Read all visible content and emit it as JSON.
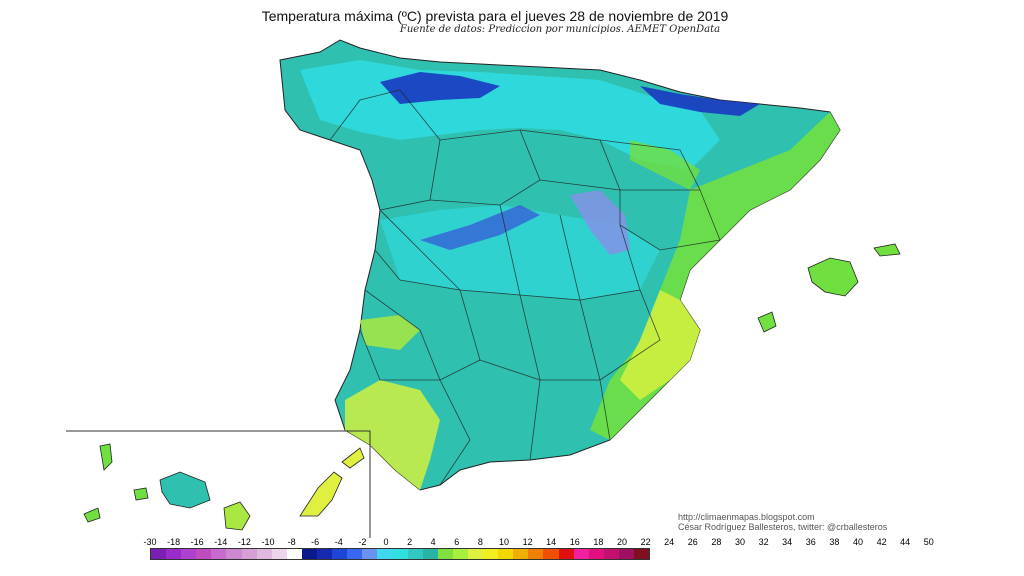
{
  "title": "Temperatura máxima (ºC) prevista para el jueves 28 de noviembre de 2019",
  "subtitle": "Fuente de datos: Prediccion por municipios. AEMET OpenData",
  "credit_url": "http://climaenmapas.blogspot.com",
  "credit_author": "César Rodríguez Ballesteros, twitter: @crballesteros",
  "legend": {
    "ticks": [
      "-30",
      "-18",
      "-16",
      "-14",
      "-12",
      "-10",
      "-8",
      "-6",
      "-4",
      "-2",
      "0",
      "2",
      "4",
      "6",
      "8",
      "10",
      "12",
      "14",
      "16",
      "18",
      "20",
      "22",
      "24",
      "26",
      "28",
      "30",
      "32",
      "34",
      "36",
      "38",
      "40",
      "42",
      "44",
      "50"
    ],
    "colors": [
      "#7a1fb0",
      "#9a2ccc",
      "#b040d0",
      "#c04cc0",
      "#c86ad0",
      "#cc88d0",
      "#d6a0d6",
      "#e0b8e0",
      "#ecd4ec",
      "#ffffff",
      "#0a1a8a",
      "#1428b0",
      "#1e44d8",
      "#3868f0",
      "#6a90f0",
      "#40d8f0",
      "#30e0e0",
      "#30c8c0",
      "#28b4a4",
      "#80e040",
      "#a8f040",
      "#e0f040",
      "#f0f020",
      "#f0d800",
      "#f0b000",
      "#f08000",
      "#f05000",
      "#e01010",
      "#f020a0",
      "#e01080",
      "#c01070",
      "#a01060",
      "#801020"
    ]
  },
  "map_legend": {
    "colors": {
      "teal_dominant": "#2fc0b0",
      "cyan": "#30e0e8",
      "cold_blue": "#1830c0",
      "lavender": "#8890e8",
      "green": "#70e040",
      "yellow_green": "#d0f040",
      "borders": "#222222"
    }
  }
}
